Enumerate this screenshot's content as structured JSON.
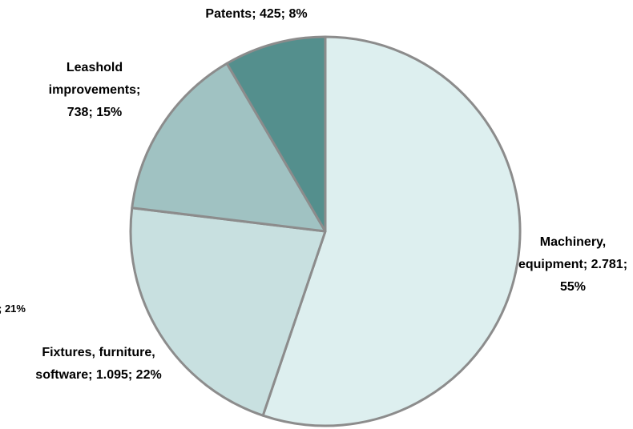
{
  "chart_data": {
    "type": "pie",
    "categories": [
      "Machinery, equipment",
      "Fixtures, furniture, software",
      "Leashold improvements",
      "Patents"
    ],
    "values": [
      2781,
      1095,
      738,
      425
    ],
    "value_labels": [
      "Machinery, equipment; 2.781; 55%",
      "Fixtures, furniture, software; 1.095; 22%",
      "Leashold improvements; 738; 15%",
      "Patents; 425; 8%"
    ],
    "colors": [
      "#ddefef",
      "#c8e0e0",
      "#a0c2c2",
      "#548f8d"
    ],
    "annotations": [
      "; 21%"
    ]
  }
}
